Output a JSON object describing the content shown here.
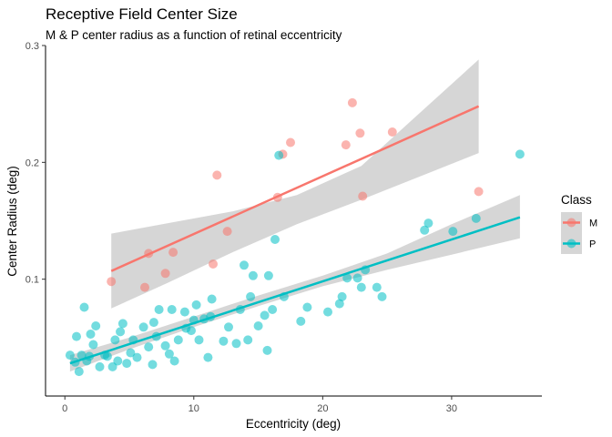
{
  "chart_data": {
    "type": "scatter",
    "title": "Receptive Field Center Size",
    "subtitle": "M & P center radius as a function of retinal eccentricity",
    "xlabel": "Eccentricity (deg)",
    "ylabel": "Center Radius (deg)",
    "xlim": [
      -1.5,
      37
    ],
    "ylim": [
      0.0,
      0.3
    ],
    "xticks": [
      0,
      10,
      20,
      30
    ],
    "yticks": [
      0.1,
      0.2,
      0.3
    ],
    "xtick_labels": [
      "0",
      "10",
      "20",
      "30"
    ],
    "ytick_labels": [
      "0.1",
      "0.2",
      "0.3"
    ],
    "grid": false,
    "legend": {
      "title": "Class",
      "position": "right"
    },
    "series": [
      {
        "name": "M",
        "color": "#F8766D",
        "points": [
          [
            3.6,
            0.098
          ],
          [
            6.2,
            0.093
          ],
          [
            6.5,
            0.122
          ],
          [
            7.8,
            0.105
          ],
          [
            8.4,
            0.123
          ],
          [
            11.5,
            0.113
          ],
          [
            11.8,
            0.189
          ],
          [
            12.6,
            0.141
          ],
          [
            16.5,
            0.17
          ],
          [
            16.9,
            0.207
          ],
          [
            17.5,
            0.217
          ],
          [
            21.8,
            0.215
          ],
          [
            22.3,
            0.251
          ],
          [
            22.9,
            0.225
          ],
          [
            23.1,
            0.171
          ],
          [
            25.4,
            0.226
          ],
          [
            32.1,
            0.175
          ]
        ],
        "fit": {
          "x": [
            3.6,
            32.1
          ],
          "y": [
            0.107,
            0.248
          ]
        },
        "band": {
          "x": [
            3.6,
            8,
            13,
            18,
            23,
            28,
            32.1
          ],
          "lower": [
            0.075,
            0.097,
            0.123,
            0.147,
            0.168,
            0.19,
            0.208
          ],
          "upper": [
            0.139,
            0.148,
            0.158,
            0.172,
            0.197,
            0.247,
            0.288
          ]
        }
      },
      {
        "name": "P",
        "color": "#00BFC4",
        "points": [
          [
            0.4,
            0.035
          ],
          [
            0.8,
            0.029
          ],
          [
            0.9,
            0.051
          ],
          [
            1.1,
            0.021
          ],
          [
            1.3,
            0.035
          ],
          [
            1.5,
            0.076
          ],
          [
            1.7,
            0.03
          ],
          [
            1.9,
            0.034
          ],
          [
            2.0,
            0.053
          ],
          [
            2.2,
            0.044
          ],
          [
            2.4,
            0.06
          ],
          [
            2.7,
            0.025
          ],
          [
            3.1,
            0.035
          ],
          [
            3.3,
            0.034
          ],
          [
            3.7,
            0.025
          ],
          [
            3.9,
            0.048
          ],
          [
            4.1,
            0.03
          ],
          [
            4.3,
            0.055
          ],
          [
            4.5,
            0.062
          ],
          [
            4.8,
            0.028
          ],
          [
            5.1,
            0.037
          ],
          [
            5.3,
            0.048
          ],
          [
            5.6,
            0.033
          ],
          [
            6.1,
            0.059
          ],
          [
            6.5,
            0.042
          ],
          [
            6.8,
            0.027
          ],
          [
            6.9,
            0.063
          ],
          [
            7.1,
            0.051
          ],
          [
            7.3,
            0.074
          ],
          [
            7.8,
            0.043
          ],
          [
            8.1,
            0.036
          ],
          [
            8.3,
            0.074
          ],
          [
            8.5,
            0.03
          ],
          [
            8.8,
            0.048
          ],
          [
            9.3,
            0.072
          ],
          [
            9.4,
            0.058
          ],
          [
            9.8,
            0.056
          ],
          [
            10.0,
            0.065
          ],
          [
            10.2,
            0.078
          ],
          [
            10.4,
            0.048
          ],
          [
            10.8,
            0.066
          ],
          [
            11.1,
            0.033
          ],
          [
            11.3,
            0.068
          ],
          [
            11.4,
            0.083
          ],
          [
            12.3,
            0.047
          ],
          [
            12.7,
            0.059
          ],
          [
            13.3,
            0.045
          ],
          [
            13.6,
            0.074
          ],
          [
            13.9,
            0.112
          ],
          [
            14.2,
            0.048
          ],
          [
            14.4,
            0.085
          ],
          [
            14.6,
            0.103
          ],
          [
            15.0,
            0.06
          ],
          [
            15.5,
            0.069
          ],
          [
            15.7,
            0.039
          ],
          [
            15.8,
            0.103
          ],
          [
            16.1,
            0.074
          ],
          [
            16.3,
            0.134
          ],
          [
            16.6,
            0.206
          ],
          [
            17.0,
            0.085
          ],
          [
            18.3,
            0.064
          ],
          [
            18.8,
            0.076
          ],
          [
            20.4,
            0.072
          ],
          [
            21.3,
            0.079
          ],
          [
            21.5,
            0.085
          ],
          [
            21.9,
            0.101
          ],
          [
            22.7,
            0.101
          ],
          [
            23.0,
            0.093
          ],
          [
            23.3,
            0.108
          ],
          [
            24.2,
            0.093
          ],
          [
            24.6,
            0.085
          ],
          [
            27.9,
            0.142
          ],
          [
            28.2,
            0.148
          ],
          [
            30.1,
            0.141
          ],
          [
            31.9,
            0.152
          ],
          [
            35.3,
            0.207
          ]
        ],
        "fit": {
          "x": [
            0.4,
            35.3
          ],
          "y": [
            0.028,
            0.153
          ]
        },
        "band": {
          "x": [
            0.4,
            5,
            10,
            15,
            20,
            25,
            30,
            35.3
          ],
          "lower": [
            0.021,
            0.04,
            0.059,
            0.077,
            0.094,
            0.108,
            0.121,
            0.135
          ],
          "upper": [
            0.035,
            0.05,
            0.068,
            0.086,
            0.103,
            0.122,
            0.147,
            0.172
          ]
        }
      }
    ]
  }
}
